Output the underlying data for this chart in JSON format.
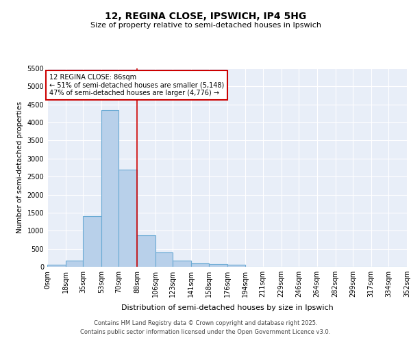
{
  "title1": "12, REGINA CLOSE, IPSWICH, IP4 5HG",
  "title2": "Size of property relative to semi-detached houses in Ipswich",
  "xlabel": "Distribution of semi-detached houses by size in Ipswich",
  "ylabel": "Number of semi-detached properties",
  "bin_labels": [
    "0sqm",
    "18sqm",
    "35sqm",
    "53sqm",
    "70sqm",
    "88sqm",
    "106sqm",
    "123sqm",
    "141sqm",
    "158sqm",
    "176sqm",
    "194sqm",
    "211sqm",
    "229sqm",
    "246sqm",
    "264sqm",
    "282sqm",
    "299sqm",
    "317sqm",
    "334sqm",
    "352sqm"
  ],
  "bin_edges": [
    0,
    18,
    35,
    53,
    70,
    88,
    106,
    123,
    141,
    158,
    176,
    194,
    211,
    229,
    246,
    264,
    282,
    299,
    317,
    334,
    352
  ],
  "bar_heights": [
    50,
    175,
    1400,
    4350,
    2700,
    875,
    400,
    175,
    100,
    75,
    50,
    0,
    0,
    0,
    0,
    0,
    0,
    0,
    0,
    0
  ],
  "bar_color": "#b8d0ea",
  "bar_edge_color": "#6aaad4",
  "property_line_x": 88,
  "property_line_color": "#cc0000",
  "annotation_line1": "12 REGINA CLOSE: 86sqm",
  "annotation_line2": "← 51% of semi-detached houses are smaller (5,148)",
  "annotation_line3": "47% of semi-detached houses are larger (4,776) →",
  "annotation_box_color": "#ffffff",
  "annotation_box_edge_color": "#cc0000",
  "ylim": [
    0,
    5500
  ],
  "yticks": [
    0,
    500,
    1000,
    1500,
    2000,
    2500,
    3000,
    3500,
    4000,
    4500,
    5000,
    5500
  ],
  "bg_color": "#e8eef8",
  "grid_color": "#ffffff",
  "fig_bg_color": "#ffffff",
  "footer1": "Contains HM Land Registry data © Crown copyright and database right 2025.",
  "footer2": "Contains public sector information licensed under the Open Government Licence v3.0."
}
